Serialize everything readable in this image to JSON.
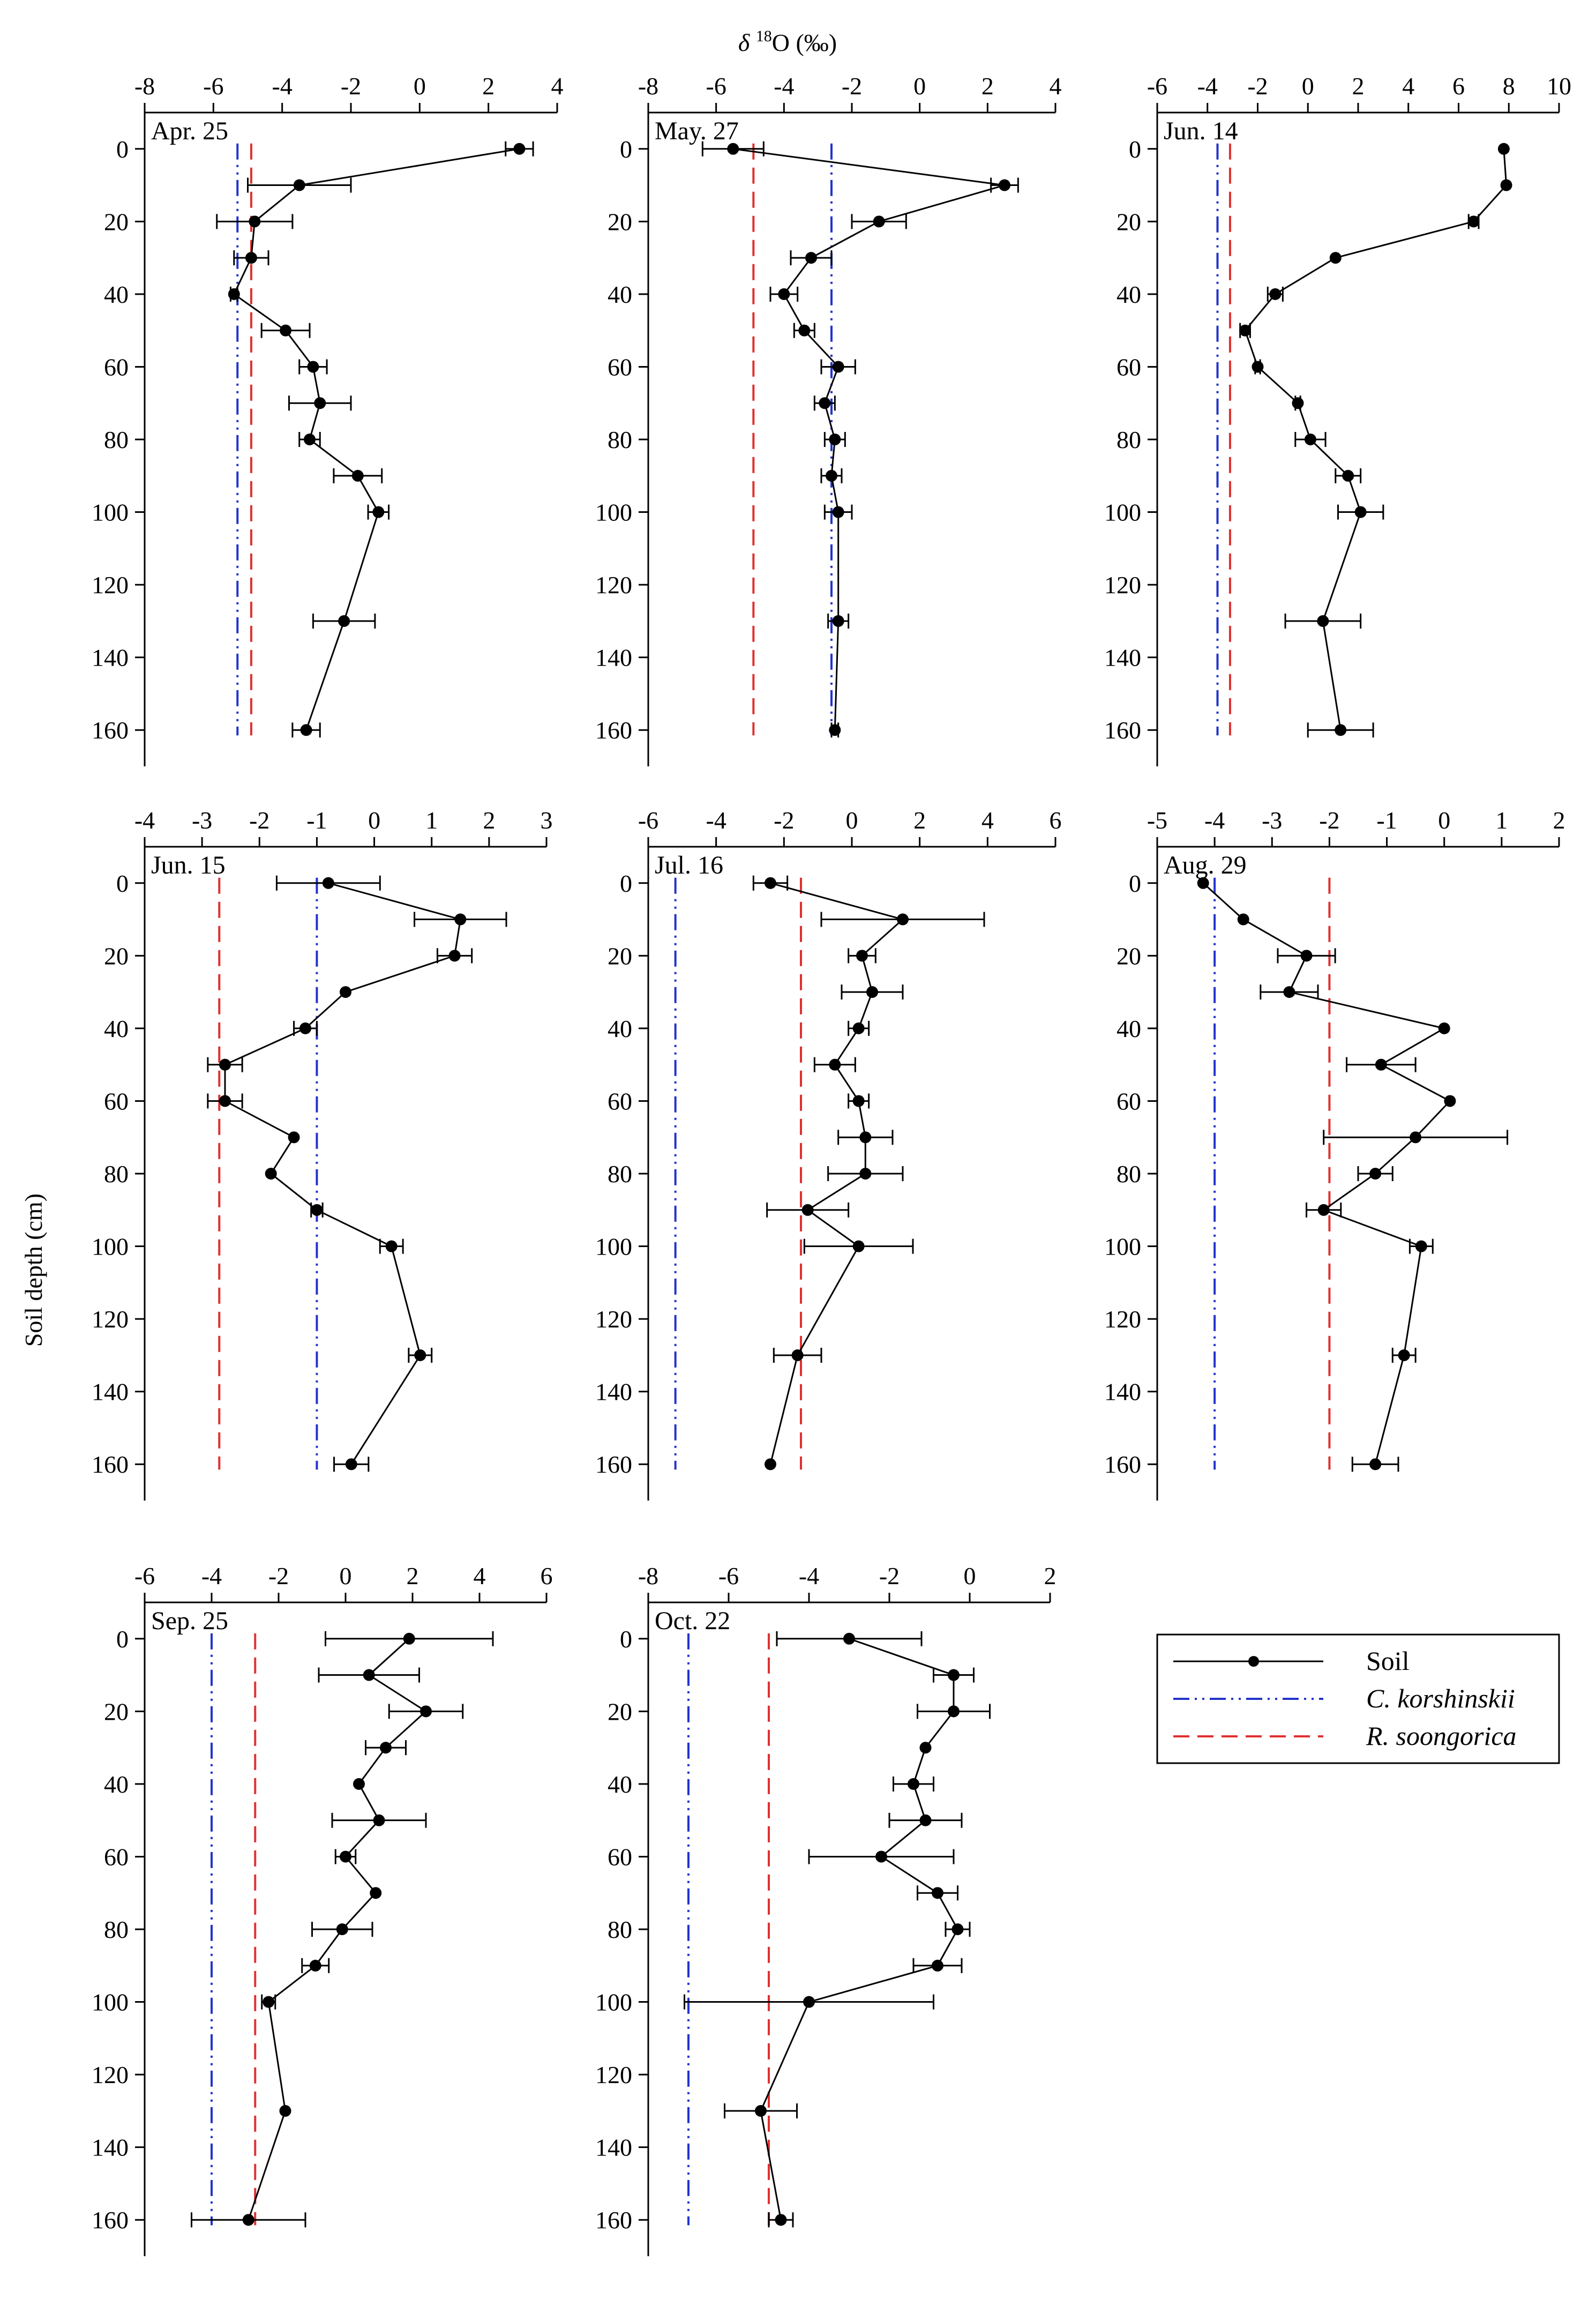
{
  "figure": {
    "x_axis_title_prefix": "δ ",
    "x_axis_title_sup": "18",
    "x_axis_title_suffix": "O  (‰)",
    "y_axis_title": "Soil depth (cm)"
  },
  "legend": {
    "soil": "Soil",
    "c_korshinskii": "C. korshinskii",
    "r_soongorica": "R. soongorica"
  },
  "colors": {
    "soil": "#000000",
    "c_korshinskii": "#2233cc",
    "r_soongorica": "#e03030"
  },
  "chart_data": [
    {
      "type": "line",
      "title": "Apr. 25",
      "xlabel": "δ18O (‰)",
      "ylabel": "Soil depth (cm)",
      "xlim": [
        -8,
        4
      ],
      "xticks": [
        -8,
        -6,
        -4,
        -2,
        0,
        2,
        4
      ],
      "ylim": [
        170,
        -10
      ],
      "yticks": [
        0,
        20,
        40,
        60,
        80,
        100,
        120,
        140,
        160
      ],
      "series": [
        {
          "name": "Soil",
          "points": [
            {
              "depth": 0,
              "value": 2.9,
              "err": 0.4
            },
            {
              "depth": 10,
              "value": -3.5,
              "err": 1.5
            },
            {
              "depth": 20,
              "value": -4.8,
              "err": 1.1
            },
            {
              "depth": 30,
              "value": -4.9,
              "err": 0.5
            },
            {
              "depth": 40,
              "value": -5.4,
              "err": 0.1
            },
            {
              "depth": 50,
              "value": -3.9,
              "err": 0.7
            },
            {
              "depth": 60,
              "value": -3.1,
              "err": 0.4
            },
            {
              "depth": 70,
              "value": -2.9,
              "err": 0.9
            },
            {
              "depth": 80,
              "value": -3.2,
              "err": 0.3
            },
            {
              "depth": 90,
              "value": -1.8,
              "err": 0.7
            },
            {
              "depth": 100,
              "value": -1.2,
              "err": 0.3
            },
            {
              "depth": 130,
              "value": -2.2,
              "err": 0.9
            },
            {
              "depth": 160,
              "value": -3.3,
              "err": 0.4
            }
          ]
        }
      ],
      "reference_lines": [
        {
          "name": "C. korshinskii",
          "value": -5.3
        },
        {
          "name": "R. soongorica",
          "value": -4.9
        }
      ]
    },
    {
      "type": "line",
      "title": "May. 27",
      "xlabel": "δ18O (‰)",
      "ylabel": "Soil depth (cm)",
      "xlim": [
        -8,
        4
      ],
      "xticks": [
        -8,
        -6,
        -4,
        -2,
        0,
        2,
        4
      ],
      "ylim": [
        170,
        -10
      ],
      "yticks": [
        0,
        20,
        40,
        60,
        80,
        100,
        120,
        140,
        160
      ],
      "series": [
        {
          "name": "Soil",
          "points": [
            {
              "depth": 0,
              "value": -5.5,
              "err": 0.9
            },
            {
              "depth": 10,
              "value": 2.5,
              "err": 0.4
            },
            {
              "depth": 20,
              "value": -1.2,
              "err": 0.8
            },
            {
              "depth": 30,
              "value": -3.2,
              "err": 0.6
            },
            {
              "depth": 40,
              "value": -4.0,
              "err": 0.4
            },
            {
              "depth": 50,
              "value": -3.4,
              "err": 0.3
            },
            {
              "depth": 60,
              "value": -2.4,
              "err": 0.5
            },
            {
              "depth": 70,
              "value": -2.8,
              "err": 0.3
            },
            {
              "depth": 80,
              "value": -2.5,
              "err": 0.3
            },
            {
              "depth": 90,
              "value": -2.6,
              "err": 0.3
            },
            {
              "depth": 100,
              "value": -2.4,
              "err": 0.4
            },
            {
              "depth": 130,
              "value": -2.4,
              "err": 0.3
            },
            {
              "depth": 160,
              "value": -2.5,
              "err": 0.1
            }
          ]
        }
      ],
      "reference_lines": [
        {
          "name": "C. korshinskii",
          "value": -2.6
        },
        {
          "name": "R. soongorica",
          "value": -4.9
        }
      ]
    },
    {
      "type": "line",
      "title": "Jun. 14",
      "xlabel": "δ18O (‰)",
      "ylabel": "Soil depth (cm)",
      "xlim": [
        -6,
        10
      ],
      "xticks": [
        -6,
        -4,
        -2,
        0,
        2,
        4,
        6,
        8,
        10
      ],
      "ylim": [
        170,
        -10
      ],
      "yticks": [
        0,
        20,
        40,
        60,
        80,
        100,
        120,
        140,
        160
      ],
      "series": [
        {
          "name": "Soil",
          "points": [
            {
              "depth": 0,
              "value": 7.8,
              "err": 0.0
            },
            {
              "depth": 10,
              "value": 7.9,
              "err": 0.0
            },
            {
              "depth": 20,
              "value": 6.6,
              "err": 0.2
            },
            {
              "depth": 30,
              "value": 1.1,
              "err": 0.0
            },
            {
              "depth": 40,
              "value": -1.3,
              "err": 0.3
            },
            {
              "depth": 50,
              "value": -2.5,
              "err": 0.2
            },
            {
              "depth": 60,
              "value": -2.0,
              "err": 0.1
            },
            {
              "depth": 70,
              "value": -0.4,
              "err": 0.1
            },
            {
              "depth": 80,
              "value": 0.1,
              "err": 0.6
            },
            {
              "depth": 90,
              "value": 1.6,
              "err": 0.5
            },
            {
              "depth": 100,
              "value": 2.1,
              "err": 0.9
            },
            {
              "depth": 130,
              "value": 0.6,
              "err": 1.5
            },
            {
              "depth": 160,
              "value": 1.3,
              "err": 1.3
            }
          ]
        }
      ],
      "reference_lines": [
        {
          "name": "C. korshinskii",
          "value": -3.6
        },
        {
          "name": "R. soongorica",
          "value": -3.1
        }
      ]
    },
    {
      "type": "line",
      "title": "Jun. 15",
      "xlabel": "δ18O (‰)",
      "ylabel": "Soil depth (cm)",
      "xlim": [
        -4,
        3
      ],
      "xticks": [
        -4,
        -3,
        -2,
        -1,
        0,
        1,
        2,
        3
      ],
      "ylim": [
        170,
        -10
      ],
      "yticks": [
        0,
        20,
        40,
        60,
        80,
        100,
        120,
        140,
        160
      ],
      "series": [
        {
          "name": "Soil",
          "points": [
            {
              "depth": 0,
              "value": -0.8,
              "err": 0.9
            },
            {
              "depth": 10,
              "value": 1.5,
              "err": 0.8
            },
            {
              "depth": 20,
              "value": 1.4,
              "err": 0.3
            },
            {
              "depth": 30,
              "value": -0.5,
              "err": 0.0
            },
            {
              "depth": 40,
              "value": -1.2,
              "err": 0.2
            },
            {
              "depth": 50,
              "value": -2.6,
              "err": 0.3
            },
            {
              "depth": 60,
              "value": -2.6,
              "err": 0.3
            },
            {
              "depth": 70,
              "value": -1.4,
              "err": 0.0
            },
            {
              "depth": 80,
              "value": -1.8,
              "err": 0.0
            },
            {
              "depth": 90,
              "value": -1.0,
              "err": 0.1
            },
            {
              "depth": 100,
              "value": 0.3,
              "err": 0.2
            },
            {
              "depth": 130,
              "value": 0.8,
              "err": 0.2
            },
            {
              "depth": 160,
              "value": -0.4,
              "err": 0.3
            }
          ]
        }
      ],
      "reference_lines": [
        {
          "name": "C. korshinskii",
          "value": -1.0
        },
        {
          "name": "R. soongorica",
          "value": -2.7
        }
      ]
    },
    {
      "type": "line",
      "title": "Jul. 16",
      "xlabel": "δ18O (‰)",
      "ylabel": "Soil depth (cm)",
      "xlim": [
        -6,
        6
      ],
      "xticks": [
        -6,
        -4,
        -2,
        0,
        2,
        4,
        6
      ],
      "ylim": [
        170,
        -10
      ],
      "yticks": [
        0,
        20,
        40,
        60,
        80,
        100,
        120,
        140,
        160
      ],
      "series": [
        {
          "name": "Soil",
          "points": [
            {
              "depth": 0,
              "value": -2.4,
              "err": 0.5
            },
            {
              "depth": 10,
              "value": 1.5,
              "err": 2.4
            },
            {
              "depth": 20,
              "value": 0.3,
              "err": 0.4
            },
            {
              "depth": 30,
              "value": 0.6,
              "err": 0.9
            },
            {
              "depth": 40,
              "value": 0.2,
              "err": 0.3
            },
            {
              "depth": 50,
              "value": -0.5,
              "err": 0.6
            },
            {
              "depth": 60,
              "value": 0.2,
              "err": 0.3
            },
            {
              "depth": 70,
              "value": 0.4,
              "err": 0.8
            },
            {
              "depth": 80,
              "value": 0.4,
              "err": 1.1
            },
            {
              "depth": 90,
              "value": -1.3,
              "err": 1.2
            },
            {
              "depth": 100,
              "value": 0.2,
              "err": 1.6
            },
            {
              "depth": 130,
              "value": -1.6,
              "err": 0.7
            },
            {
              "depth": 160,
              "value": -2.4,
              "err": 0.0
            }
          ]
        }
      ],
      "reference_lines": [
        {
          "name": "C. korshinskii",
          "value": -5.2
        },
        {
          "name": "R. soongorica",
          "value": -1.5
        }
      ]
    },
    {
      "type": "line",
      "title": "Aug. 29",
      "xlabel": "δ18O (‰)",
      "ylabel": "Soil depth (cm)",
      "xlim": [
        -5,
        2
      ],
      "xticks": [
        -5,
        -4,
        -3,
        -2,
        -1,
        0,
        1,
        2
      ],
      "ylim": [
        170,
        -10
      ],
      "yticks": [
        0,
        20,
        40,
        60,
        80,
        100,
        120,
        140,
        160
      ],
      "series": [
        {
          "name": "Soil",
          "points": [
            {
              "depth": 0,
              "value": -4.2,
              "err": 0.0
            },
            {
              "depth": 10,
              "value": -3.5,
              "err": 0.0
            },
            {
              "depth": 20,
              "value": -2.4,
              "err": 0.5
            },
            {
              "depth": 30,
              "value": -2.7,
              "err": 0.5
            },
            {
              "depth": 40,
              "value": 0.0,
              "err": 0.0
            },
            {
              "depth": 50,
              "value": -1.1,
              "err": 0.6
            },
            {
              "depth": 60,
              "value": 0.1,
              "err": 0.0
            },
            {
              "depth": 70,
              "value": -0.5,
              "err": 1.6
            },
            {
              "depth": 80,
              "value": -1.2,
              "err": 0.3
            },
            {
              "depth": 90,
              "value": -2.1,
              "err": 0.3
            },
            {
              "depth": 100,
              "value": -0.4,
              "err": 0.2
            },
            {
              "depth": 130,
              "value": -0.7,
              "err": 0.2
            },
            {
              "depth": 160,
              "value": -1.2,
              "err": 0.4
            }
          ]
        }
      ],
      "reference_lines": [
        {
          "name": "C. korshinskii",
          "value": -4.0
        },
        {
          "name": "R. soongorica",
          "value": -2.0
        }
      ]
    },
    {
      "type": "line",
      "title": "Sep. 25",
      "xlabel": "δ18O (‰)",
      "ylabel": "Soil depth (cm)",
      "xlim": [
        -6,
        6
      ],
      "xticks": [
        -6,
        -4,
        -2,
        0,
        2,
        4,
        6
      ],
      "ylim": [
        170,
        -10
      ],
      "yticks": [
        0,
        20,
        40,
        60,
        80,
        100,
        120,
        140,
        160
      ],
      "series": [
        {
          "name": "Soil",
          "points": [
            {
              "depth": 0,
              "value": 1.9,
              "err": 2.5
            },
            {
              "depth": 10,
              "value": 0.7,
              "err": 1.5
            },
            {
              "depth": 20,
              "value": 2.4,
              "err": 1.1
            },
            {
              "depth": 30,
              "value": 1.2,
              "err": 0.6
            },
            {
              "depth": 40,
              "value": 0.4,
              "err": 0.0
            },
            {
              "depth": 50,
              "value": 1.0,
              "err": 1.4
            },
            {
              "depth": 60,
              "value": 0.0,
              "err": 0.3
            },
            {
              "depth": 70,
              "value": 0.9,
              "err": 0.0
            },
            {
              "depth": 80,
              "value": -0.1,
              "err": 0.9
            },
            {
              "depth": 90,
              "value": -0.9,
              "err": 0.4
            },
            {
              "depth": 100,
              "value": -2.3,
              "err": 0.2
            },
            {
              "depth": 130,
              "value": -1.8,
              "err": 0.0
            },
            {
              "depth": 160,
              "value": -2.9,
              "err": 1.7
            }
          ]
        }
      ],
      "reference_lines": [
        {
          "name": "C. korshinskii",
          "value": -4.0
        },
        {
          "name": "R. soongorica",
          "value": -2.7
        }
      ]
    },
    {
      "type": "line",
      "title": "Oct. 22",
      "xlabel": "δ18O (‰)",
      "ylabel": "Soil depth (cm)",
      "xlim": [
        -8,
        2
      ],
      "xticks": [
        -8,
        -6,
        -4,
        -2,
        0,
        2
      ],
      "ylim": [
        170,
        -10
      ],
      "yticks": [
        0,
        20,
        40,
        60,
        80,
        100,
        120,
        140,
        160
      ],
      "series": [
        {
          "name": "Soil",
          "points": [
            {
              "depth": 0,
              "value": -3.0,
              "err": 1.8
            },
            {
              "depth": 10,
              "value": -0.4,
              "err": 0.5
            },
            {
              "depth": 20,
              "value": -0.4,
              "err": 0.9
            },
            {
              "depth": 30,
              "value": -1.1,
              "err": 0.0
            },
            {
              "depth": 40,
              "value": -1.4,
              "err": 0.5
            },
            {
              "depth": 50,
              "value": -1.1,
              "err": 0.9
            },
            {
              "depth": 60,
              "value": -2.2,
              "err": 1.8
            },
            {
              "depth": 70,
              "value": -0.8,
              "err": 0.5
            },
            {
              "depth": 80,
              "value": -0.3,
              "err": 0.3
            },
            {
              "depth": 90,
              "value": -0.8,
              "err": 0.6
            },
            {
              "depth": 100,
              "value": -4.0,
              "err": 3.1
            },
            {
              "depth": 130,
              "value": -5.2,
              "err": 0.9
            },
            {
              "depth": 160,
              "value": -4.7,
              "err": 0.3
            }
          ]
        }
      ],
      "reference_lines": [
        {
          "name": "C. korshinskii",
          "value": -7.0
        },
        {
          "name": "R. soongorica",
          "value": -5.0
        }
      ]
    }
  ]
}
